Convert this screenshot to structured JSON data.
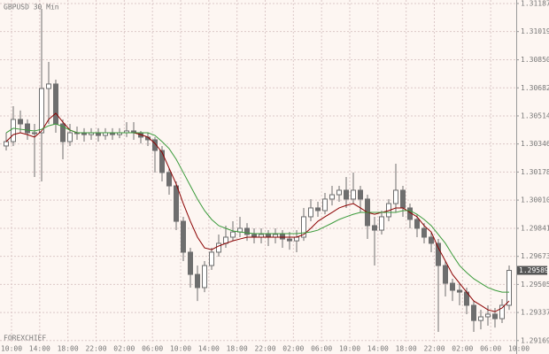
{
  "chart_data": {
    "type": "candlestick",
    "title": "GBPUSD 30 Min",
    "watermark": "FOREXCHIEF",
    "x_labels": [
      "10:00",
      "14:00",
      "18:00",
      "22:00",
      "02:00",
      "06:00",
      "10:00",
      "14:00",
      "18:00",
      "22:00",
      "02:00",
      "06:00",
      "10:00",
      "14:00",
      "18:00",
      "22:00",
      "02:00",
      "06:00",
      "10:00"
    ],
    "open": [
      1.30334,
      1.3036,
      1.30493,
      1.30466,
      1.30413,
      1.30413,
      1.30678,
      1.30705,
      1.30466,
      1.3036,
      1.30413,
      1.30413,
      1.30402,
      1.30413,
      1.30397,
      1.30413,
      1.30402,
      1.30413,
      1.30424,
      1.30413,
      1.30387,
      1.30371,
      1.30307,
      1.30175,
      1.30095,
      1.29883,
      1.29698,
      1.29565,
      1.29486,
      1.29618,
      1.29698,
      1.29751,
      1.29788,
      1.29819,
      1.29841,
      1.29804,
      1.29788,
      1.29804,
      1.29788,
      1.29804,
      1.29777,
      1.29766,
      1.29788,
      1.2991,
      1.29963,
      1.29947,
      1.30016,
      1.30042,
      1.30069,
      1.30016,
      1.30069,
      1.30016,
      1.29857,
      1.2983,
      1.2991,
      1.29989,
      1.30069,
      1.29963,
      1.29894,
      1.29841,
      1.29788,
      1.29751,
      1.29618,
      1.29512,
      1.2947,
      1.29459,
      1.2938,
      1.29289,
      1.29311,
      1.29327,
      1.293,
      1.2938
    ],
    "high": [
      1.30413,
      1.30572,
      1.30546,
      1.30493,
      1.30466,
      1.31155,
      1.30837,
      1.30731,
      1.30493,
      1.30466,
      1.3045,
      1.3044,
      1.3044,
      1.3044,
      1.3044,
      1.3044,
      1.3044,
      1.30477,
      1.30477,
      1.30424,
      1.30413,
      1.30387,
      1.30334,
      1.30201,
      1.30122,
      1.2991,
      1.29724,
      1.29618,
      1.29645,
      1.29724,
      1.29804,
      1.29857,
      1.29883,
      1.2991,
      1.29872,
      1.29841,
      1.29841,
      1.2983,
      1.29841,
      1.2983,
      1.29819,
      1.2983,
      1.29963,
      1.30016,
      1.3,
      1.30053,
      1.30095,
      1.30095,
      1.30148,
      1.30175,
      1.30095,
      1.30042,
      1.2991,
      1.29947,
      1.30016,
      1.30228,
      1.30095,
      1.29989,
      1.29925,
      1.29872,
      1.29819,
      1.29777,
      1.29645,
      1.29539,
      1.29512,
      1.29486,
      1.29406,
      1.29353,
      1.2938,
      1.29364,
      1.29417,
      1.29618
    ],
    "low": [
      1.30307,
      1.30334,
      1.30413,
      1.30371,
      1.30148,
      1.30122,
      1.30466,
      1.30413,
      1.30254,
      1.30334,
      1.30371,
      1.3036,
      1.30371,
      1.3036,
      1.30371,
      1.30371,
      1.30381,
      1.30387,
      1.30371,
      1.30349,
      1.30334,
      1.30175,
      1.30122,
      1.30042,
      1.2983,
      1.29645,
      1.29486,
      1.29406,
      1.29459,
      1.29592,
      1.29671,
      1.29724,
      1.29766,
      1.29788,
      1.29766,
      1.29751,
      1.29751,
      1.29735,
      1.29751,
      1.29724,
      1.29713,
      1.29698,
      1.29766,
      1.29883,
      1.2991,
      1.29925,
      1.29978,
      1.3,
      1.29963,
      1.29989,
      1.29936,
      1.29777,
      1.29618,
      1.29804,
      1.29883,
      1.29936,
      1.2991,
      1.29841,
      1.29788,
      1.29751,
      1.29698,
      1.29221,
      1.29433,
      1.29406,
      1.2938,
      1.29327,
      1.29221,
      1.29236,
      1.29258,
      1.29247,
      1.29274,
      1.29353
    ],
    "close": [
      1.3036,
      1.30493,
      1.30466,
      1.30413,
      1.30413,
      1.30678,
      1.30705,
      1.30466,
      1.3036,
      1.30413,
      1.30413,
      1.30402,
      1.30413,
      1.30397,
      1.30413,
      1.30402,
      1.30413,
      1.30424,
      1.30413,
      1.30387,
      1.30371,
      1.30307,
      1.30175,
      1.30095,
      1.29883,
      1.29698,
      1.29565,
      1.29486,
      1.29618,
      1.29698,
      1.29751,
      1.29788,
      1.29819,
      1.29841,
      1.29804,
      1.29788,
      1.29804,
      1.29788,
      1.29804,
      1.29777,
      1.29766,
      1.29788,
      1.2991,
      1.29963,
      1.29947,
      1.30016,
      1.30042,
      1.30069,
      1.30016,
      1.30069,
      1.30016,
      1.29857,
      1.2983,
      1.2991,
      1.29989,
      1.30069,
      1.29963,
      1.29894,
      1.29841,
      1.29788,
      1.29751,
      1.29618,
      1.29512,
      1.2947,
      1.29459,
      1.2938,
      1.29289,
      1.29311,
      1.29327,
      1.293,
      1.2938,
      1.29589
    ],
    "up_color": "#ffffff",
    "down_color": "#6e6e6e",
    "outline_color": "#6e6e6e",
    "lines": [
      {
        "color": "#8b0000",
        "values": [
          1.3036,
          1.30402,
          1.30413,
          1.30402,
          1.30387,
          1.30424,
          1.30493,
          1.3053,
          1.30477,
          1.30429,
          1.30413,
          1.30413,
          1.30413,
          1.30413,
          1.30413,
          1.30413,
          1.30413,
          1.30413,
          1.30413,
          1.30402,
          1.30387,
          1.30349,
          1.30296,
          1.30201,
          1.30106,
          1.29989,
          1.29883,
          1.29788,
          1.29724,
          1.29713,
          1.29735,
          1.29751,
          1.29766,
          1.29777,
          1.29788,
          1.29788,
          1.29788,
          1.29788,
          1.29788,
          1.29788,
          1.29788,
          1.29788,
          1.29804,
          1.29841,
          1.29883,
          1.2991,
          1.29936,
          1.29963,
          1.29978,
          1.29989,
          1.29963,
          1.29936,
          1.29925,
          1.29936,
          1.29947,
          1.29963,
          1.29963,
          1.29936,
          1.2991,
          1.29857,
          1.29819,
          1.29724,
          1.29645,
          1.29565,
          1.29512,
          1.29459,
          1.29406,
          1.2938,
          1.29353,
          1.29342,
          1.29364,
          1.29406
        ]
      },
      {
        "color": "#3a9a3a",
        "values": [
          1.30413,
          1.3044,
          1.30434,
          1.30429,
          1.30424,
          1.30434,
          1.30455,
          1.30466,
          1.3045,
          1.30429,
          1.30413,
          1.30413,
          1.30413,
          1.30413,
          1.30413,
          1.30413,
          1.30413,
          1.30413,
          1.30413,
          1.30413,
          1.30413,
          1.30397,
          1.3036,
          1.30318,
          1.30254,
          1.30175,
          1.30095,
          1.30016,
          1.29947,
          1.29894,
          1.29857,
          1.29841,
          1.29825,
          1.29819,
          1.29814,
          1.29809,
          1.29809,
          1.29809,
          1.29809,
          1.29809,
          1.29809,
          1.29809,
          1.29814,
          1.29819,
          1.2983,
          1.29851,
          1.29872,
          1.29894,
          1.2991,
          1.29925,
          1.29936,
          1.29936,
          1.29936,
          1.29936,
          1.29936,
          1.29936,
          1.29947,
          1.29947,
          1.29925,
          1.29894,
          1.29857,
          1.29804,
          1.29751,
          1.29682,
          1.29618,
          1.29576,
          1.29539,
          1.29512,
          1.29486,
          1.2947,
          1.29459,
          1.29459
        ]
      }
    ],
    "ylim": [
      1.29152,
      1.31208
    ],
    "yticks": [
      1.31187,
      1.31019,
      {
        "value": 1.3085,
        "label": "1.30850"
      },
      1.30682,
      1.30514,
      1.30346,
      1.30178,
      {
        "value": 1.3001,
        "label": "1.30010"
      },
      1.29841,
      1.29673,
      1.29505,
      1.29337,
      1.29169
    ],
    "grid": true
  }
}
